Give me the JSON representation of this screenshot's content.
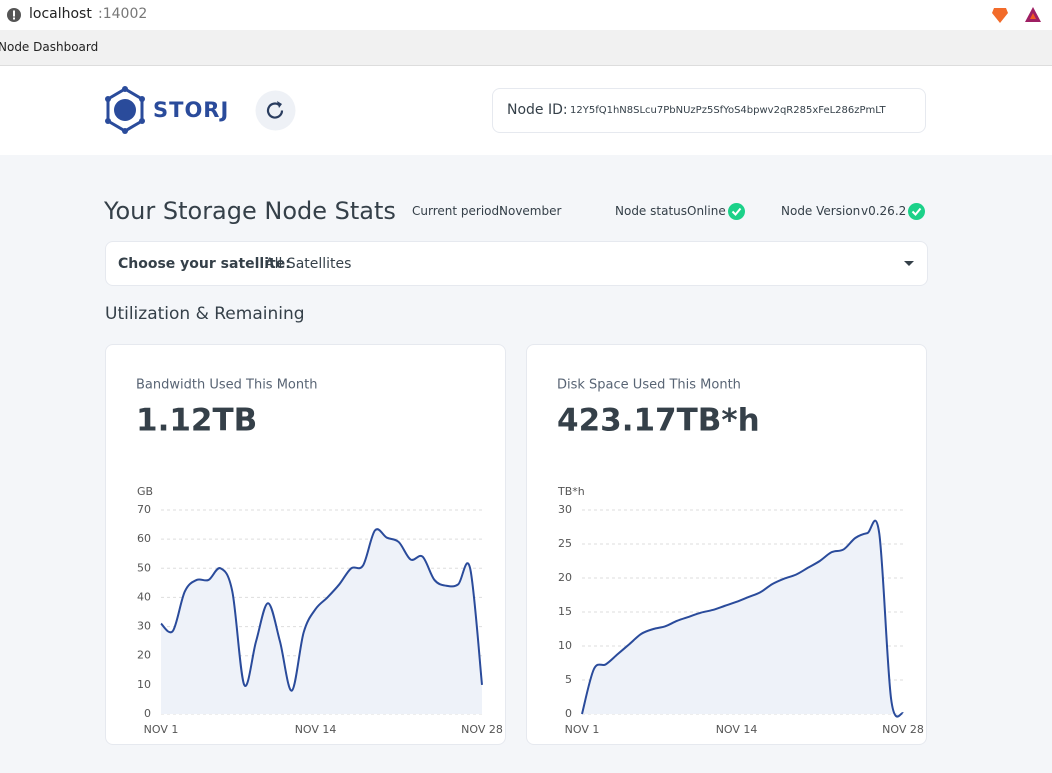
{
  "browser": {
    "host": "localhost",
    "port": ":14002",
    "tab": "Node Dashboard"
  },
  "header": {
    "logo": "STORJ",
    "node_id_label": "Node ID:",
    "node_id": "12Y5fQ1hN8SLcu7PbNUzPz5SfYoS4bpwv2qR285xFeL286zPmLT"
  },
  "stats": {
    "title": "Your Storage Node Stats",
    "period_label": "Current period:",
    "period": "November",
    "status_label": "Node status",
    "status": "Online",
    "version_label": "Node Version",
    "version": "v0.26.2"
  },
  "satellite": {
    "label": "Choose your satellite:",
    "value": "All Satellites"
  },
  "section_title": "Utilization & Remaining",
  "chart_data": [
    {
      "type": "line",
      "title": "Bandwidth Used This Month",
      "summary": "1.12TB",
      "y_label": "GB",
      "color": "#2a4b9b",
      "categories": [
        "NOV 1",
        null,
        null,
        null,
        null,
        null,
        null,
        null,
        null,
        null,
        null,
        null,
        null,
        "NOV 14",
        null,
        null,
        null,
        null,
        null,
        null,
        null,
        null,
        null,
        null,
        null,
        null,
        null,
        "NOV 28"
      ],
      "values": [
        31,
        28.5,
        42,
        46,
        46,
        50,
        42,
        10,
        25,
        38,
        25,
        8,
        28,
        36,
        40,
        44.5,
        50,
        51,
        63,
        60.5,
        59,
        53,
        54,
        46,
        44,
        44.5,
        50,
        10
      ],
      "ylim": [
        0,
        70
      ],
      "yticks": [
        0,
        10,
        20,
        30,
        40,
        50,
        60,
        70
      ],
      "grid": true
    },
    {
      "type": "line",
      "title": "Disk Space Used This Month",
      "summary": "423.17TB*h",
      "y_label": "TB*h",
      "color": "#2a4b9b",
      "categories": [
        "NOV 1",
        null,
        null,
        null,
        null,
        null,
        null,
        null,
        null,
        null,
        null,
        null,
        null,
        "NOV 14",
        null,
        null,
        null,
        null,
        null,
        null,
        null,
        null,
        null,
        null,
        null,
        null,
        null,
        "NOV 28"
      ],
      "values": [
        0,
        6.6,
        7.3,
        8.8,
        10.3,
        11.8,
        12.5,
        12.9,
        13.7,
        14.3,
        14.9,
        15.3,
        15.9,
        16.5,
        17.2,
        17.9,
        19.1,
        19.9,
        20.5,
        21.5,
        22.5,
        23.8,
        24.2,
        25.9,
        26.6,
        26.6,
        2.2,
        0.1
      ],
      "ylim": [
        0,
        30
      ],
      "yticks": [
        0,
        5,
        10,
        15,
        20,
        25,
        30
      ],
      "grid": true
    }
  ]
}
